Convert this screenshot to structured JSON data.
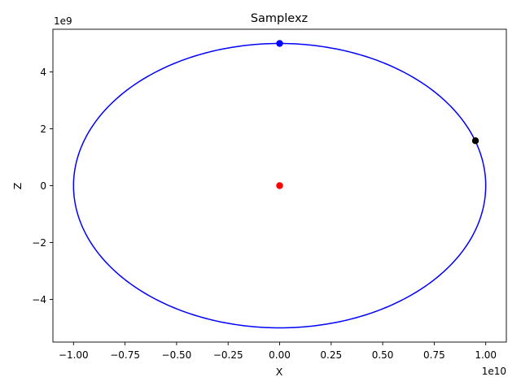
{
  "chart_data": {
    "type": "scatter",
    "title": "Samplexz",
    "xlabel": "X",
    "ylabel": "Z",
    "x_offset_text": "1e10",
    "y_offset_text": "1e9",
    "xlim": [
      -1.1,
      1.1
    ],
    "ylim": [
      -5.5,
      5.5
    ],
    "x_ticks": [
      -1.0,
      -0.75,
      -0.5,
      -0.25,
      0.0,
      0.25,
      0.5,
      0.75,
      1.0
    ],
    "x_tick_labels": [
      "−1.00",
      "−0.75",
      "−0.50",
      "−0.25",
      "0.00",
      "0.25",
      "0.50",
      "0.75",
      "1.00"
    ],
    "y_ticks": [
      -4,
      -2,
      0,
      2,
      4
    ],
    "y_tick_labels": [
      "−4",
      "−2",
      "0",
      "2",
      "4"
    ],
    "grid": false,
    "orbit": {
      "center_x": 0.0,
      "center_z": 0.0,
      "semi_axis_x": 1.0,
      "semi_axis_z": 5.0,
      "color": "#0000ff"
    },
    "points": [
      {
        "x": 0.0,
        "z": 0.0,
        "color": "#ff0000"
      },
      {
        "x": 0.0,
        "z": 5.0,
        "color": "#0000ff"
      },
      {
        "x": 0.95,
        "z": 1.58,
        "color": "#000000"
      }
    ]
  }
}
